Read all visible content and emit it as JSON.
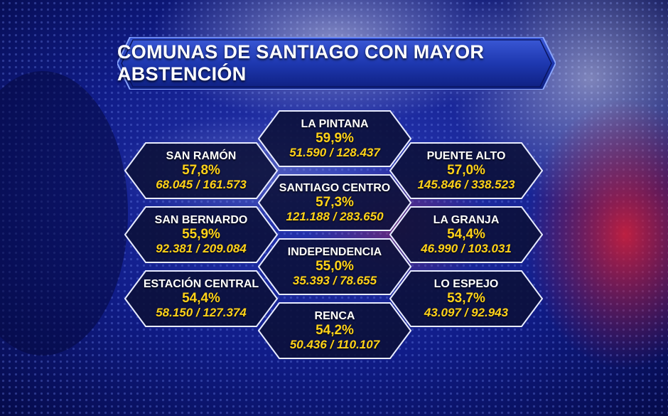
{
  "title": "COMUNAS DE SANTIAGO CON MAYOR ABSTENCIÓN",
  "colors": {
    "accent_yellow": "#ffd21a",
    "banner_blue": "#1e3aa8",
    "hex_fill": "#0b1038",
    "hex_border": "#e8ecff",
    "background": "#0a1470"
  },
  "comunas": [
    {
      "name": "LA PINTANA",
      "pct": "59,9%",
      "votes": "51.590 / 128.437"
    },
    {
      "name": "SAN RAMÓN",
      "pct": "57,8%",
      "votes": "68.045 / 161.573"
    },
    {
      "name": "PUENTE ALTO",
      "pct": "57,0%",
      "votes": "145.846 / 338.523"
    },
    {
      "name": "SANTIAGO CENTRO",
      "pct": "57,3%",
      "votes": "121.188 / 283.650"
    },
    {
      "name": "SAN BERNARDO",
      "pct": "55,9%",
      "votes": "92.381 / 209.084"
    },
    {
      "name": "LA GRANJA",
      "pct": "54,4%",
      "votes": "46.990 / 103.031"
    },
    {
      "name": "INDEPENDENCIA",
      "pct": "55,0%",
      "votes": "35.393 / 78.655"
    },
    {
      "name": "ESTACIÓN CENTRAL",
      "pct": "54,4%",
      "votes": "58.150 / 127.374"
    },
    {
      "name": "LO ESPEJO",
      "pct": "53,7%",
      "votes": "43.097 / 92.943"
    },
    {
      "name": "RENCA",
      "pct": "54,2%",
      "votes": "50.436 / 110.107"
    }
  ]
}
